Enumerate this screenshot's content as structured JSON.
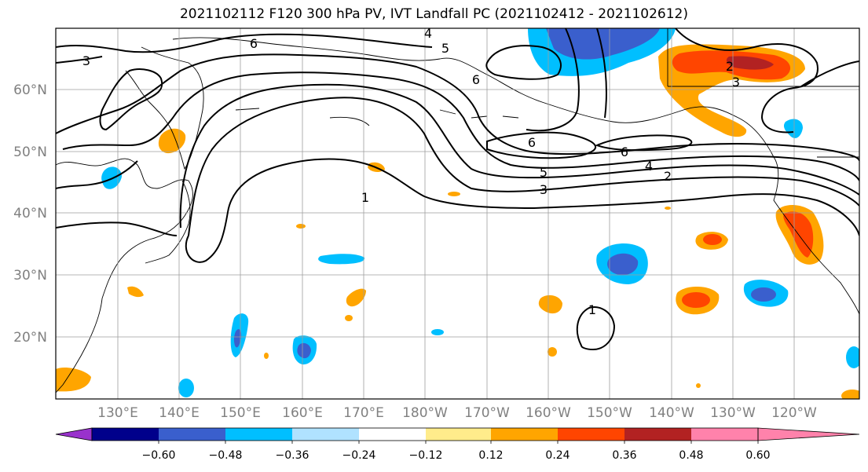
{
  "title": "2021102112 F120 300 hPa PV, IVT Landfall PC (2021102412 - 2021102612)",
  "lat_labels": [
    "60°N",
    "50°N",
    "40°N",
    "30°N",
    "20°N"
  ],
  "lon_labels": [
    "130°E",
    "140°E",
    "150°E",
    "160°E",
    "170°E",
    "180°W",
    "170°W",
    "160°W",
    "150°W",
    "140°W",
    "130°W",
    "120°W"
  ],
  "contour_labels": [
    "3",
    "6",
    "4",
    "5",
    "6",
    "2",
    "3",
    "6",
    "6",
    "5",
    "4",
    "2",
    "3",
    "1",
    "1"
  ],
  "colorbar": {
    "ticks": [
      "−0.60",
      "−0.48",
      "−0.36",
      "−0.24",
      "−0.12",
      "0.12",
      "0.24",
      "0.36",
      "0.48",
      "0.60"
    ],
    "colors": [
      "#9932cc",
      "#00008b",
      "#3a5fcd",
      "#00bfff",
      "#b0e2ff",
      "#ffffff",
      "#ffec8b",
      "#ffa500",
      "#ff4500",
      "#b22222",
      "#ff82ab"
    ]
  },
  "colors": {
    "neg_strong": "#3a5fcd",
    "neg_mid": "#00bfff",
    "neg_weak": "#b0e2ff",
    "pos_weak": "#ffec8b",
    "pos_mid": "#ffa500",
    "pos_strong": "#ff4500",
    "pos_vstrong": "#b22222"
  }
}
